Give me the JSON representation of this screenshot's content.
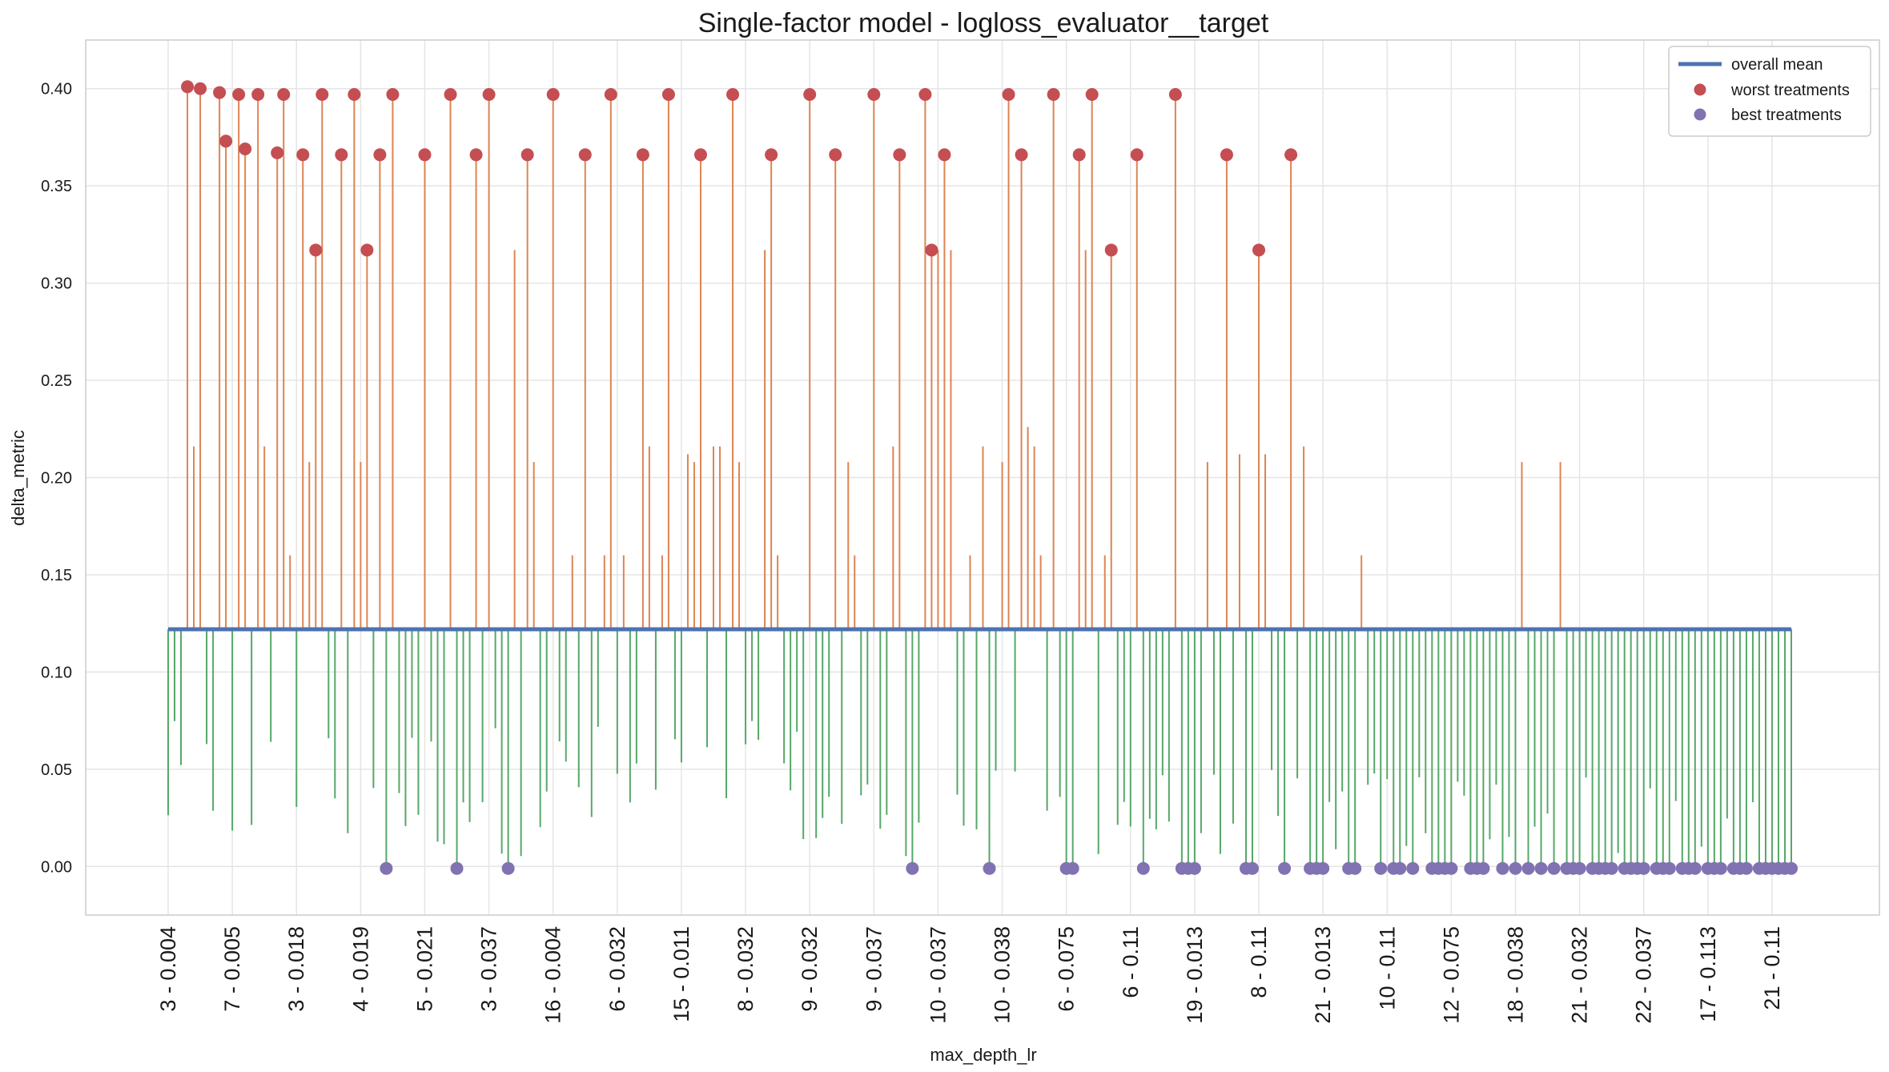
{
  "chart_data": {
    "type": "lollipop",
    "title": "Single-factor model - logloss_evaluator__target",
    "xlabel": "max_depth_lr",
    "ylabel": "delta_metric",
    "ylim": [
      -0.025,
      0.425
    ],
    "yticks": [
      "0.00",
      "0.05",
      "0.10",
      "0.15",
      "0.20",
      "0.25",
      "0.30",
      "0.35",
      "0.40"
    ],
    "ytick_values": [
      0.0,
      0.05,
      0.1,
      0.15,
      0.2,
      0.25,
      0.3,
      0.35,
      0.4
    ],
    "grid": true,
    "legend_position": "top-right",
    "overall_mean": 0.122,
    "num_treatments": 254,
    "xtick_labels": [
      "3 - 0.004",
      "7 - 0.005",
      "3 - 0.018",
      "4 - 0.019",
      "5 - 0.021",
      "3 - 0.037",
      "16 - 0.004",
      "6 - 0.032",
      "15 - 0.011",
      "8 - 0.032",
      "9 - 0.032",
      "9 - 0.037",
      "10 - 0.037",
      "10 - 0.038",
      "6 - 0.075",
      "6 - 0.11",
      "19 - 0.013",
      "8 - 0.11",
      "21 - 0.013",
      "10 - 0.11",
      "12 - 0.075",
      "18 - 0.038",
      "21 - 0.032",
      "22 - 0.037",
      "17 - 0.113",
      "21 - 0.11"
    ],
    "xtick_index_step": 10,
    "series": [
      {
        "name": "overall mean",
        "kind": "line",
        "color": "#4c72b0"
      },
      {
        "name": "worst treatments",
        "kind": "points",
        "color": "#c44e52",
        "points": [
          [
            3,
            0.401
          ],
          [
            5,
            0.4
          ],
          [
            8,
            0.398
          ],
          [
            9,
            0.373
          ],
          [
            11,
            0.397
          ],
          [
            12,
            0.369
          ],
          [
            14,
            0.397
          ],
          [
            17,
            0.367
          ],
          [
            18,
            0.397
          ],
          [
            21,
            0.366
          ],
          [
            23,
            0.317
          ],
          [
            24,
            0.397
          ],
          [
            27,
            0.366
          ],
          [
            29,
            0.397
          ],
          [
            31,
            0.317
          ],
          [
            33,
            0.366
          ],
          [
            35,
            0.397
          ],
          [
            40,
            0.366
          ],
          [
            44,
            0.397
          ],
          [
            48,
            0.366
          ],
          [
            50,
            0.397
          ],
          [
            56,
            0.366
          ],
          [
            60,
            0.397
          ],
          [
            65,
            0.366
          ],
          [
            69,
            0.397
          ],
          [
            74,
            0.366
          ],
          [
            78,
            0.397
          ],
          [
            83,
            0.366
          ],
          [
            88,
            0.397
          ],
          [
            94,
            0.366
          ],
          [
            100,
            0.397
          ],
          [
            104,
            0.366
          ],
          [
            110,
            0.397
          ],
          [
            114,
            0.366
          ],
          [
            118,
            0.397
          ],
          [
            119,
            0.317
          ],
          [
            121,
            0.366
          ],
          [
            131,
            0.397
          ],
          [
            133,
            0.366
          ],
          [
            138,
            0.397
          ],
          [
            142,
            0.366
          ],
          [
            144,
            0.397
          ],
          [
            147,
            0.317
          ],
          [
            151,
            0.366
          ],
          [
            157,
            0.397
          ],
          [
            165,
            0.366
          ],
          [
            170,
            0.317
          ],
          [
            175,
            0.366
          ]
        ]
      },
      {
        "name": "best treatments",
        "kind": "points",
        "color": "#8172b2",
        "points": [
          [
            34,
            -0.001
          ],
          [
            45,
            -0.001
          ],
          [
            53,
            -0.001
          ],
          [
            116,
            -0.001
          ],
          [
            128,
            -0.001
          ],
          [
            140,
            -0.001
          ],
          [
            141,
            -0.001
          ],
          [
            152,
            -0.001
          ],
          [
            158,
            -0.001
          ],
          [
            159,
            -0.001
          ],
          [
            160,
            -0.001
          ],
          [
            168,
            -0.001
          ],
          [
            169,
            -0.001
          ],
          [
            174,
            -0.001
          ],
          [
            178,
            -0.001
          ],
          [
            179,
            -0.001
          ],
          [
            180,
            -0.001
          ],
          [
            184,
            -0.001
          ],
          [
            185,
            -0.001
          ],
          [
            189,
            -0.001
          ],
          [
            191,
            -0.001
          ],
          [
            192,
            -0.001
          ],
          [
            194,
            -0.001
          ],
          [
            197,
            -0.001
          ],
          [
            198,
            -0.001
          ],
          [
            199,
            -0.001
          ],
          [
            200,
            -0.001
          ],
          [
            203,
            -0.001
          ],
          [
            204,
            -0.001
          ],
          [
            205,
            -0.001
          ],
          [
            208,
            -0.001
          ],
          [
            210,
            -0.001
          ],
          [
            212,
            -0.001
          ],
          [
            214,
            -0.001
          ],
          [
            216,
            -0.001
          ],
          [
            218,
            -0.001
          ],
          [
            219,
            -0.001
          ],
          [
            220,
            -0.001
          ],
          [
            222,
            -0.001
          ],
          [
            223,
            -0.001
          ],
          [
            224,
            -0.001
          ],
          [
            225,
            -0.001
          ],
          [
            227,
            -0.001
          ],
          [
            228,
            -0.001
          ],
          [
            229,
            -0.001
          ],
          [
            230,
            -0.001
          ],
          [
            232,
            -0.001
          ],
          [
            233,
            -0.001
          ],
          [
            234,
            -0.001
          ],
          [
            236,
            -0.001
          ],
          [
            237,
            -0.001
          ],
          [
            238,
            -0.001
          ],
          [
            240,
            -0.001
          ],
          [
            241,
            -0.001
          ],
          [
            242,
            -0.001
          ],
          [
            244,
            -0.001
          ],
          [
            245,
            -0.001
          ],
          [
            246,
            -0.001
          ],
          [
            248,
            -0.001
          ],
          [
            249,
            -0.001
          ],
          [
            250,
            -0.001
          ],
          [
            251,
            -0.001
          ],
          [
            252,
            -0.001
          ],
          [
            253,
            -0.001
          ]
        ]
      }
    ],
    "colors": {
      "above_mean": "#dd8452",
      "below_mean": "#55a868",
      "mean_line": "#4c72b0",
      "worst": "#c44e52",
      "best": "#8172b2",
      "grid": "#e5e5e5",
      "frame": "#cccccc"
    }
  }
}
